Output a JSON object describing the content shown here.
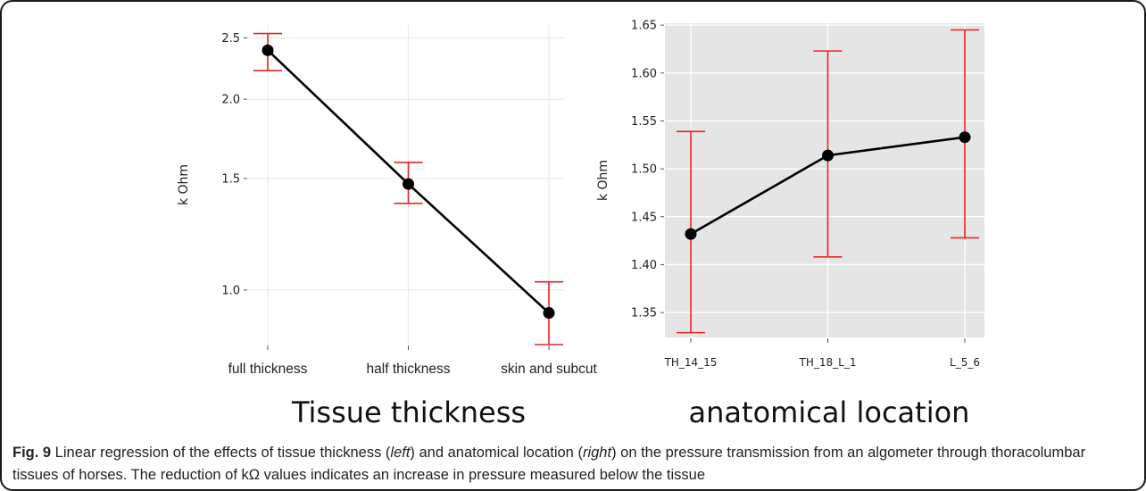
{
  "chart_data": [
    {
      "type": "line",
      "ylabel": "k Ohm",
      "xlabel": "Tissue thickness",
      "categories": [
        "full thickness",
        "half thickness",
        "skin and subcut"
      ],
      "values": [
        2.39,
        1.47,
        0.92
      ],
      "error_low": [
        2.22,
        1.37,
        0.82
      ],
      "error_high": [
        2.54,
        1.59,
        1.03
      ],
      "yticks": [
        1.0,
        1.5,
        2.0,
        2.5
      ],
      "ytick_labels": [
        "1.0",
        "1.5",
        "2.0",
        "2.5"
      ],
      "scale": "log",
      "ylim": [
        0.82,
        2.62
      ],
      "grid": true,
      "colors": {
        "line": "#000000",
        "errorbar": "#e82323"
      }
    },
    {
      "type": "line",
      "ylabel": "k Ohm",
      "xlabel": "anatomical location",
      "categories": [
        "TH_14_15",
        "TH_18_L_1",
        "L_5_6"
      ],
      "values": [
        1.432,
        1.514,
        1.533
      ],
      "error_low": [
        1.329,
        1.408,
        1.428
      ],
      "error_high": [
        1.539,
        1.623,
        1.645
      ],
      "yticks": [
        1.35,
        1.4,
        1.45,
        1.5,
        1.55,
        1.6,
        1.65
      ],
      "ytick_labels": [
        "1.35",
        "1.40",
        "1.45",
        "1.50",
        "1.55",
        "1.60",
        "1.65"
      ],
      "scale": "linear",
      "ylim": [
        1.324,
        1.652
      ],
      "grid": true,
      "panel_background": "#e5e5e5",
      "colors": {
        "line": "#000000",
        "errorbar": "#e82323"
      }
    }
  ],
  "caption": {
    "label": "Fig. 9",
    "parts": [
      {
        "t": " Linear regression of the effects of tissue thickness (",
        "i": false
      },
      {
        "t": "left",
        "i": true
      },
      {
        "t": ") and anatomical location (",
        "i": false
      },
      {
        "t": "right",
        "i": true
      },
      {
        "t": ") on the pressure transmission from an algometer through thoracolumbar tissues of horses. The reduction of kΩ values indicates an increase in pressure measured below the tissue",
        "i": false
      }
    ]
  }
}
